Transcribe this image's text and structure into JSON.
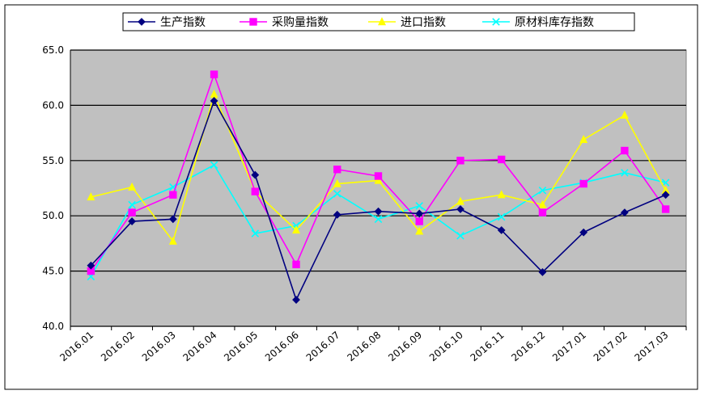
{
  "chart_data": {
    "type": "line",
    "title": "",
    "xlabel": "",
    "ylabel": "",
    "categories": [
      "2016.01",
      "2016.02",
      "2016.03",
      "2016.04",
      "2016.05",
      "2016.06",
      "2016.07",
      "2016.08",
      "2016.09",
      "2016.10",
      "2016.11",
      "2016.12",
      "2017.01",
      "2017.02",
      "2017.03"
    ],
    "ylim": [
      40.0,
      65.0
    ],
    "yticks": [
      "40.0",
      "45.0",
      "50.0",
      "55.0",
      "60.0",
      "65.0"
    ],
    "ytick_values": [
      40,
      45,
      50,
      55,
      60,
      65
    ],
    "grid": true,
    "legend_position": "top",
    "plot_background": "#c0c0c0",
    "series": [
      {
        "name": "生产指数",
        "color": "#000080",
        "marker": "diamond",
        "values": [
          45.5,
          49.5,
          49.7,
          60.4,
          53.7,
          42.4,
          50.1,
          50.4,
          50.2,
          50.6,
          48.7,
          44.9,
          48.5,
          50.3,
          51.9
        ]
      },
      {
        "name": "采购量指数",
        "color": "#ff00ff",
        "marker": "square",
        "values": [
          45.0,
          50.3,
          51.9,
          62.8,
          52.2,
          45.6,
          54.2,
          53.6,
          49.5,
          55.0,
          55.1,
          50.3,
          52.9,
          55.9,
          50.6
        ]
      },
      {
        "name": "进口指数",
        "color": "#ffff00",
        "marker": "triangle",
        "values": [
          51.7,
          52.6,
          47.7,
          61.0,
          52.2,
          48.7,
          52.9,
          53.2,
          48.6,
          51.3,
          51.9,
          51.0,
          56.9,
          59.1,
          52.3
        ]
      },
      {
        "name": "原材料库存指数",
        "color": "#00ffff",
        "marker": "x",
        "values": [
          44.5,
          51.0,
          52.6,
          54.6,
          48.4,
          49.1,
          52.0,
          49.7,
          50.9,
          48.2,
          49.9,
          52.3,
          53.0,
          53.9,
          53.0
        ]
      }
    ]
  }
}
